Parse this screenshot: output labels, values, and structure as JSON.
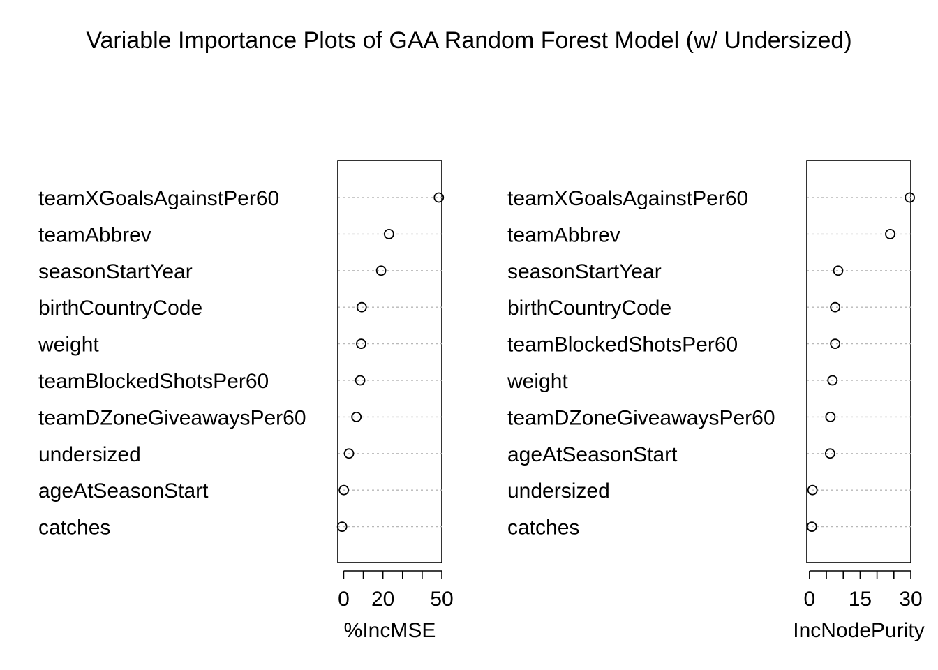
{
  "title": "Variable Importance Plots of GAA Random Forest Model (w/ Undersized)",
  "chart_data": [
    {
      "type": "scatter",
      "style": "dotchart",
      "xlabel": "%IncMSE",
      "xlim": [
        -3,
        50
      ],
      "xticks": [
        0,
        10,
        20,
        30,
        40,
        50
      ],
      "xtick_labels": [
        "0",
        "20",
        "50"
      ],
      "xtick_labeled_values": [
        0,
        20,
        50
      ],
      "categories": [
        "teamXGoalsAgainstPer60",
        "teamAbbrev",
        "seasonStartYear",
        "birthCountryCode",
        "weight",
        "teamBlockedShotsPer60",
        "teamDZoneGiveawaysPer60",
        "undersized",
        "ageAtSeasonStart",
        "catches"
      ],
      "values": [
        48.5,
        23.1,
        19.1,
        9.2,
        8.9,
        8.4,
        6.5,
        2.7,
        0.1,
        -0.8
      ],
      "grid": true
    },
    {
      "type": "scatter",
      "style": "dotchart",
      "xlabel": "IncNodePurity",
      "xlim": [
        -0.8,
        30
      ],
      "xticks": [
        0,
        5,
        10,
        15,
        20,
        25,
        30
      ],
      "xtick_labels": [
        "0",
        "15",
        "30"
      ],
      "xtick_labeled_values": [
        0,
        15,
        30
      ],
      "categories": [
        "teamXGoalsAgainstPer60",
        "teamAbbrev",
        "seasonStartYear",
        "birthCountryCode",
        "teamBlockedShotsPer60",
        "weight",
        "teamDZoneGiveawaysPer60",
        "ageAtSeasonStart",
        "undersized",
        "catches"
      ],
      "values": [
        29.7,
        23.9,
        8.5,
        7.6,
        7.6,
        6.8,
        6.2,
        6.1,
        0.9,
        0.7
      ],
      "grid": true
    }
  ]
}
